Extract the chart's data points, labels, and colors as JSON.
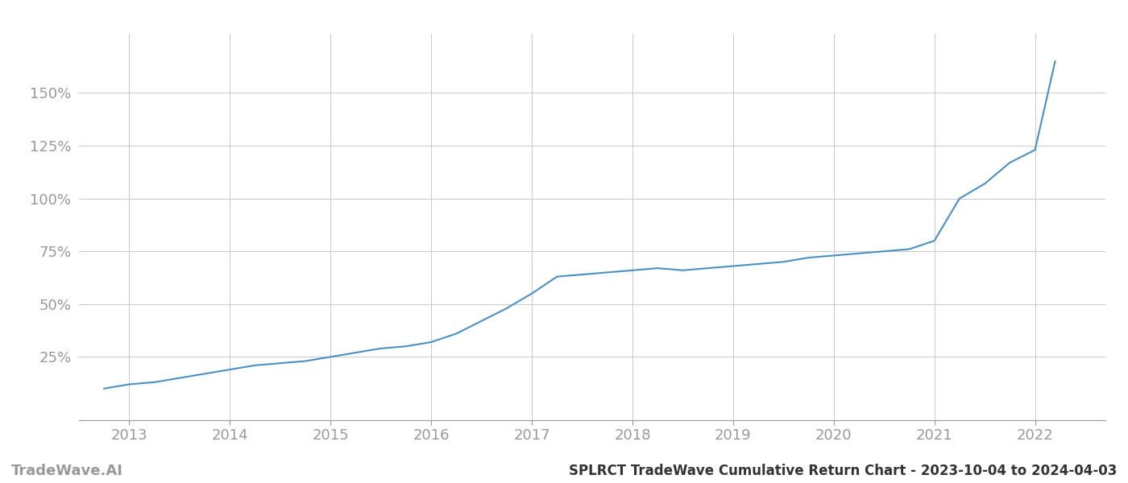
{
  "title": "SPLRCT TradeWave Cumulative Return Chart - 2023-10-04 to 2024-04-03",
  "watermark": "TradeWave.AI",
  "line_color": "#4a90c4",
  "background_color": "#ffffff",
  "grid_color": "#cccccc",
  "x_tick_labels": [
    "2013",
    "2014",
    "2015",
    "2016",
    "2017",
    "2018",
    "2019",
    "2020",
    "2021",
    "2022"
  ],
  "x_tick_positions": [
    2013,
    2014,
    2015,
    2016,
    2017,
    2018,
    2019,
    2020,
    2021,
    2022
  ],
  "y_tick_labels": [
    "25%",
    "50%",
    "75%",
    "100%",
    "125%",
    "150%"
  ],
  "y_tick_values": [
    25,
    50,
    75,
    100,
    125,
    150
  ],
  "xlim": [
    2012.5,
    2022.7
  ],
  "ylim": [
    -5,
    178
  ],
  "data_x": [
    2012.75,
    2013.0,
    2013.25,
    2013.5,
    2013.75,
    2014.0,
    2014.25,
    2014.5,
    2014.75,
    2015.0,
    2015.25,
    2015.5,
    2015.75,
    2016.0,
    2016.25,
    2016.5,
    2016.75,
    2017.0,
    2017.25,
    2017.5,
    2017.75,
    2018.0,
    2018.25,
    2018.5,
    2018.75,
    2019.0,
    2019.25,
    2019.5,
    2019.75,
    2020.0,
    2020.25,
    2020.5,
    2020.75,
    2021.0,
    2021.25,
    2021.5,
    2021.75,
    2022.0,
    2022.2
  ],
  "data_y": [
    10,
    12,
    13,
    15,
    17,
    19,
    21,
    22,
    23,
    25,
    27,
    29,
    30,
    32,
    36,
    42,
    48,
    55,
    63,
    64,
    65,
    66,
    67,
    66,
    67,
    68,
    69,
    70,
    72,
    73,
    74,
    75,
    76,
    80,
    100,
    107,
    117,
    123,
    165
  ],
  "line_width": 1.5,
  "tick_color": "#999999",
  "tick_fontsize": 13,
  "footer_fontsize": 12,
  "title_fontsize": 12,
  "watermark_fontsize": 13
}
